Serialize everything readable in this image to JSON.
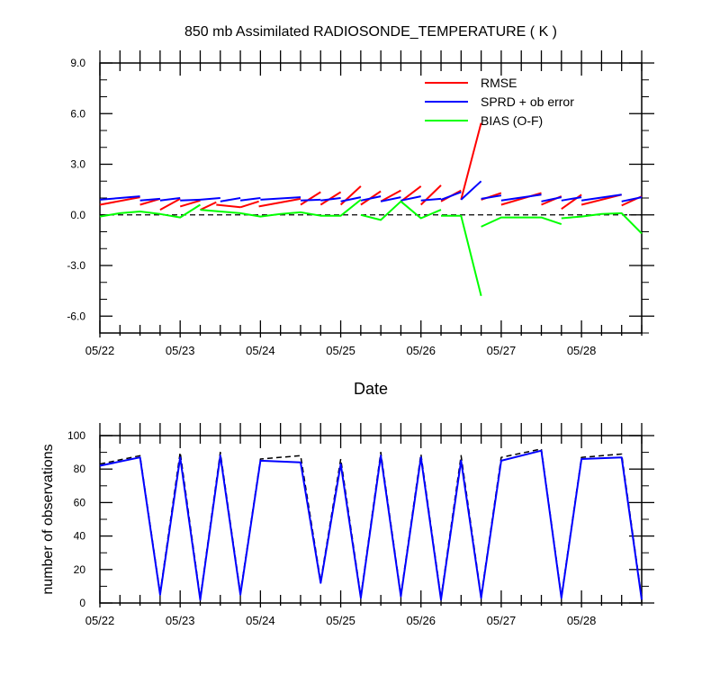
{
  "chart_data": [
    {
      "type": "line",
      "title": "850 mb Assimilated RADIOSONDE_TEMPERATURE ( K )",
      "xlabel": "Date",
      "ylabel": "",
      "x_tick_labels": [
        "05/22",
        "05/23",
        "05/24",
        "05/25",
        "05/26",
        "05/27",
        "05/28"
      ],
      "y_tick_labels": [
        "9.0",
        "6.0",
        "3.0",
        "0.0",
        "-3.0",
        "-6.0"
      ],
      "xlim": [
        0,
        6.75
      ],
      "ylim": [
        -7.0,
        9.0
      ],
      "zero_line": true,
      "legend_position": "top-right",
      "colors": {
        "RMSE": "#ff0000",
        "SPRD + ob error": "#0000ff",
        "BIAS (O-F)": "#00ff00"
      },
      "x": [
        0,
        0.5,
        0.75,
        1.0,
        1.25,
        1.75,
        2.0,
        2.5,
        2.75,
        3.0,
        3.25,
        3.5,
        3.75,
        4.0,
        4.25,
        4.5,
        4.75,
        5.0,
        5.5,
        5.75,
        6.0,
        6.5,
        6.75
      ],
      "series": [
        {
          "name": "RMSE",
          "segments": [
            [
              [
                0,
                0.6
              ],
              [
                0.5,
                1.05
              ]
            ],
            [
              [
                0.5,
                0.6
              ],
              [
                0.75,
                0.95
              ]
            ],
            [
              [
                0.75,
                0.3
              ],
              [
                1.0,
                0.95
              ]
            ],
            [
              [
                1.0,
                0.5
              ],
              [
                1.25,
                0.85
              ]
            ],
            [
              [
                1.25,
                0.3
              ],
              [
                1.45,
                0.75
              ]
            ],
            [
              [
                1.45,
                0.6
              ],
              [
                1.75,
                0.45
              ]
            ],
            [
              [
                1.75,
                0.45
              ],
              [
                1.98,
                0.8
              ]
            ],
            [
              [
                1.98,
                0.5
              ],
              [
                2.5,
                0.95
              ]
            ],
            [
              [
                2.5,
                0.6
              ],
              [
                2.75,
                1.35
              ]
            ],
            [
              [
                2.75,
                0.6
              ],
              [
                3.0,
                1.35
              ]
            ],
            [
              [
                3.0,
                0.6
              ],
              [
                3.25,
                1.7
              ]
            ],
            [
              [
                3.25,
                0.6
              ],
              [
                3.5,
                1.4
              ]
            ],
            [
              [
                3.5,
                0.8
              ],
              [
                3.75,
                1.45
              ]
            ],
            [
              [
                3.75,
                0.8
              ],
              [
                4.0,
                1.7
              ]
            ],
            [
              [
                4.0,
                0.6
              ],
              [
                4.25,
                1.75
              ]
            ],
            [
              [
                4.25,
                0.8
              ],
              [
                4.5,
                1.45
              ]
            ],
            [
              [
                4.5,
                0.9
              ],
              [
                4.75,
                5.45
              ]
            ],
            [
              [
                4.75,
                0.9
              ],
              [
                5.0,
                1.3
              ]
            ],
            [
              [
                5.0,
                0.6
              ],
              [
                5.5,
                1.3
              ]
            ],
            [
              [
                5.5,
                0.6
              ],
              [
                5.75,
                1.1
              ]
            ],
            [
              [
                5.75,
                0.35
              ],
              [
                6.0,
                1.2
              ]
            ],
            [
              [
                6.0,
                0.6
              ],
              [
                6.5,
                1.2
              ]
            ],
            [
              [
                6.5,
                0.55
              ],
              [
                6.75,
                1.1
              ]
            ]
          ]
        },
        {
          "name": "SPRD + ob error",
          "segments": [
            [
              [
                0,
                0.9
              ],
              [
                0.5,
                1.1
              ]
            ],
            [
              [
                0.5,
                0.85
              ],
              [
                0.75,
                0.95
              ]
            ],
            [
              [
                0.75,
                0.85
              ],
              [
                1.0,
                1.0
              ]
            ],
            [
              [
                1.0,
                0.85
              ],
              [
                1.25,
                0.9
              ]
            ],
            [
              [
                1.25,
                0.9
              ],
              [
                1.5,
                1.0
              ]
            ],
            [
              [
                1.5,
                0.8
              ],
              [
                1.75,
                1.0
              ]
            ],
            [
              [
                1.75,
                0.85
              ],
              [
                2.0,
                1.0
              ]
            ],
            [
              [
                2.0,
                0.9
              ],
              [
                2.5,
                1.05
              ]
            ],
            [
              [
                2.5,
                0.85
              ],
              [
                2.75,
                0.9
              ]
            ],
            [
              [
                2.75,
                0.85
              ],
              [
                3.0,
                1.0
              ]
            ],
            [
              [
                3.0,
                0.8
              ],
              [
                3.25,
                1.05
              ]
            ],
            [
              [
                3.25,
                0.85
              ],
              [
                3.5,
                1.1
              ]
            ],
            [
              [
                3.5,
                0.8
              ],
              [
                3.75,
                1.05
              ]
            ],
            [
              [
                3.75,
                0.85
              ],
              [
                4.0,
                1.1
              ]
            ],
            [
              [
                4.0,
                0.85
              ],
              [
                4.25,
                0.95
              ]
            ],
            [
              [
                4.25,
                0.9
              ],
              [
                4.5,
                1.35
              ]
            ],
            [
              [
                4.5,
                0.9
              ],
              [
                4.75,
                2.0
              ]
            ],
            [
              [
                4.75,
                0.95
              ],
              [
                5.0,
                1.15
              ]
            ],
            [
              [
                5.0,
                0.85
              ],
              [
                5.5,
                1.2
              ]
            ],
            [
              [
                5.5,
                0.8
              ],
              [
                5.75,
                1.05
              ]
            ],
            [
              [
                5.75,
                0.85
              ],
              [
                6.0,
                1.05
              ]
            ],
            [
              [
                6.0,
                0.85
              ],
              [
                6.5,
                1.2
              ]
            ],
            [
              [
                6.5,
                0.8
              ],
              [
                6.75,
                1.05
              ]
            ]
          ]
        },
        {
          "name": "BIAS (O-F)",
          "segments": [
            [
              [
                0,
                -0.1
              ],
              [
                0.25,
                0.1
              ],
              [
                0.5,
                0.2
              ],
              [
                0.75,
                0.05
              ],
              [
                1.0,
                -0.15
              ],
              [
                1.25,
                0.6
              ]
            ],
            [
              [
                1.25,
                0.3
              ],
              [
                1.5,
                0.2
              ],
              [
                1.75,
                0.1
              ],
              [
                2.0,
                -0.1
              ],
              [
                2.25,
                0.05
              ],
              [
                2.5,
                0.15
              ],
              [
                2.75,
                -0.05
              ],
              [
                3.0,
                -0.05
              ],
              [
                3.25,
                0.9
              ]
            ],
            [
              [
                3.25,
                0.0
              ],
              [
                3.5,
                -0.3
              ],
              [
                3.75,
                0.8
              ],
              [
                4.0,
                -0.2
              ],
              [
                4.25,
                0.3
              ]
            ],
            [
              [
                4.25,
                -0.05
              ],
              [
                4.5,
                -0.05
              ],
              [
                4.75,
                -4.8
              ]
            ],
            [
              [
                4.75,
                -0.7
              ],
              [
                5.0,
                -0.15
              ],
              [
                5.25,
                -0.15
              ],
              [
                5.5,
                -0.15
              ],
              [
                5.75,
                -0.55
              ]
            ],
            [
              [
                5.75,
                -0.2
              ],
              [
                6.0,
                -0.1
              ],
              [
                6.25,
                0.05
              ],
              [
                6.5,
                0.1
              ],
              [
                6.75,
                -1.1
              ]
            ]
          ]
        }
      ]
    },
    {
      "type": "line",
      "title": "",
      "xlabel": "",
      "ylabel": "number of observations",
      "x_tick_labels": [
        "05/22",
        "05/23",
        "05/24",
        "05/25",
        "05/26",
        "05/27",
        "05/28"
      ],
      "y_tick_labels": [
        "100",
        "80",
        "60",
        "40",
        "20",
        "0"
      ],
      "xlim": [
        0,
        6.75
      ],
      "ylim": [
        0,
        100
      ],
      "x": [
        0,
        0.5,
        0.75,
        1.0,
        1.25,
        1.5,
        1.75,
        2.0,
        2.5,
        2.75,
        3.0,
        3.25,
        3.5,
        3.75,
        4.0,
        4.25,
        4.5,
        4.75,
        5.0,
        5.5,
        5.75,
        6.0,
        6.5,
        6.75
      ],
      "series": [
        {
          "name": "",
          "color": "#0000ff",
          "values": [
            82,
            87,
            5,
            87,
            2,
            88,
            5,
            85,
            84,
            12,
            83,
            3,
            88,
            4,
            87,
            2,
            85,
            3,
            85,
            91,
            3,
            86,
            87,
            2
          ]
        },
        {
          "name": "",
          "color": "#000000",
          "style": "dashed",
          "values": [
            83,
            88,
            6,
            90,
            3,
            90,
            6,
            86,
            88,
            13,
            86,
            4,
            90,
            5,
            89,
            3,
            88,
            4,
            87,
            92,
            4,
            87,
            89,
            3
          ]
        }
      ]
    }
  ]
}
